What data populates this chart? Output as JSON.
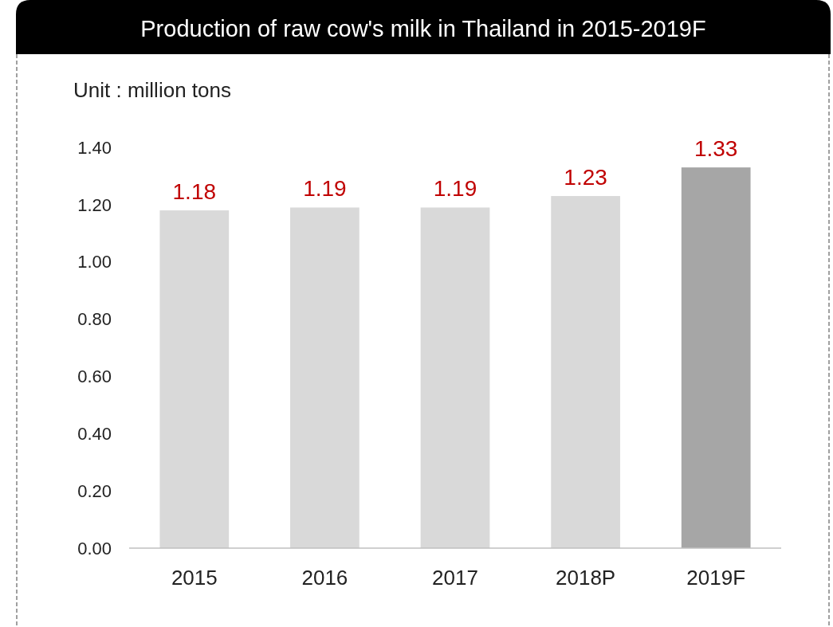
{
  "chart_data": {
    "type": "bar",
    "title": "Production of raw cow's milk in Thailand in 2015-2019F",
    "ylabel": "Unit : million tons",
    "categories": [
      "2015",
      "2016",
      "2017",
      "2018P",
      "2019F"
    ],
    "values": [
      1.18,
      1.19,
      1.19,
      1.23,
      1.33
    ],
    "colors": [
      "#d9d9d9",
      "#d9d9d9",
      "#d9d9d9",
      "#d9d9d9",
      "#a6a6a6"
    ],
    "data_labels": true,
    "ylim": [
      0,
      1.4
    ],
    "yticks": [
      {
        "value": 0,
        "label": "0.00"
      },
      {
        "value": 0.2,
        "label": "0.20"
      },
      {
        "value": 0.4,
        "label": "0.40"
      },
      {
        "value": 0.6,
        "label": "0.60"
      },
      {
        "value": 0.8,
        "label": "0.80"
      },
      {
        "value": 1,
        "label": "1.00"
      },
      {
        "value": 1.2,
        "label": "1.20"
      },
      {
        "value": 1.4,
        "label": "1.40"
      }
    ],
    "grid": false
  }
}
